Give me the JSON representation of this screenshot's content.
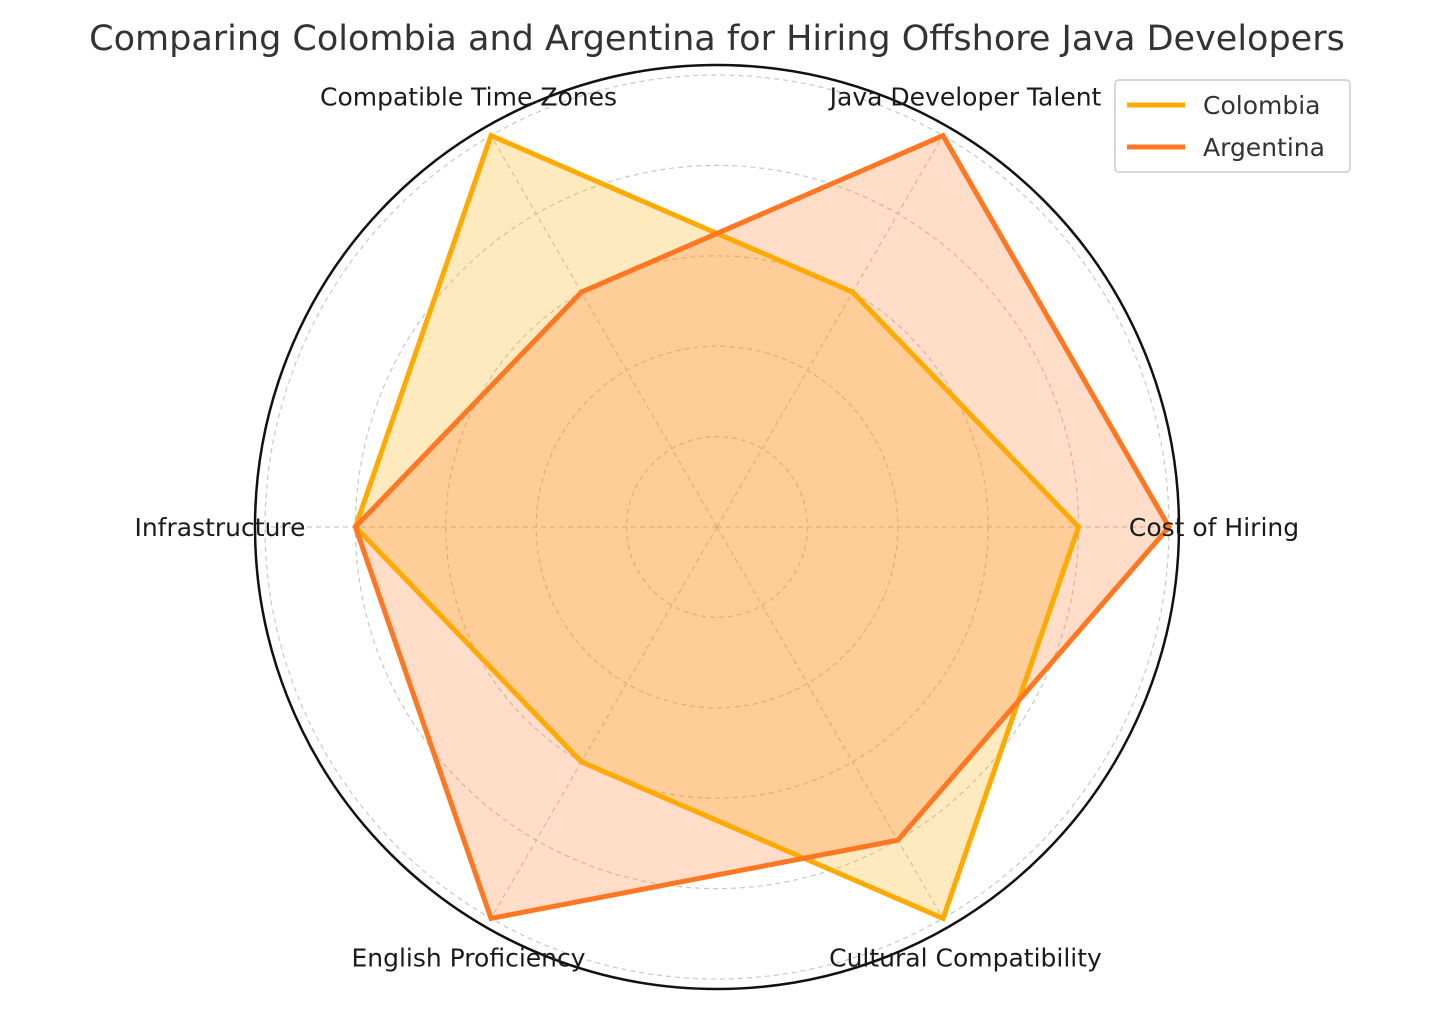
{
  "chart_data": {
    "type": "radar",
    "title": "Comparing Colombia and Argentina for Hiring Offshore Java Developers",
    "categories": [
      "Cost of Hiring",
      "Java Developer Talent",
      "Compatible Time Zones",
      "Infrastructure",
      "English Proficiency",
      "Cultural Compatibility"
    ],
    "rmax": 10,
    "grid_levels": [
      2,
      4,
      6,
      8,
      10
    ],
    "grid": true,
    "legend_position": "top-right",
    "series": [
      {
        "name": "Colombia",
        "color": "#FFAA00",
        "fill_opacity": 0.25,
        "values": [
          8,
          6,
          10,
          8,
          6,
          10
        ]
      },
      {
        "name": "Argentina",
        "color": "#FF7722",
        "fill_opacity": 0.25,
        "values": [
          10,
          10,
          6,
          8,
          10,
          8
        ]
      }
    ]
  }
}
